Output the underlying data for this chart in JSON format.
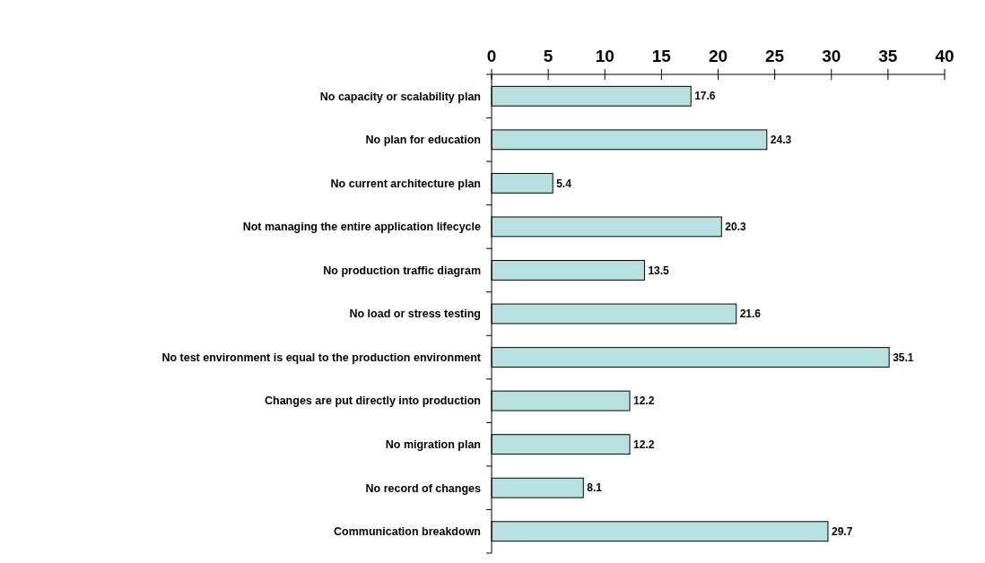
{
  "chart_data": {
    "type": "bar",
    "orientation": "horizontal",
    "categories": [
      "No capacity or scalability plan",
      "No plan for education",
      "No current architecture plan",
      "Not managing the entire application lifecycle",
      "No production traffic diagram",
      "No load or stress testing",
      "No test environment is equal to the production environment",
      "Changes are put directly into production",
      "No migration plan",
      "No record of changes",
      "Communication breakdown"
    ],
    "values": [
      17.6,
      24.3,
      5.4,
      20.3,
      13.5,
      21.6,
      35.1,
      12.2,
      12.2,
      8.1,
      29.7
    ],
    "color": "#b8e0e0",
    "xlim": [
      0,
      40
    ],
    "xticks": [
      0,
      5,
      10,
      15,
      20,
      25,
      30,
      35,
      40
    ],
    "data_labels": true,
    "grid": false
  }
}
